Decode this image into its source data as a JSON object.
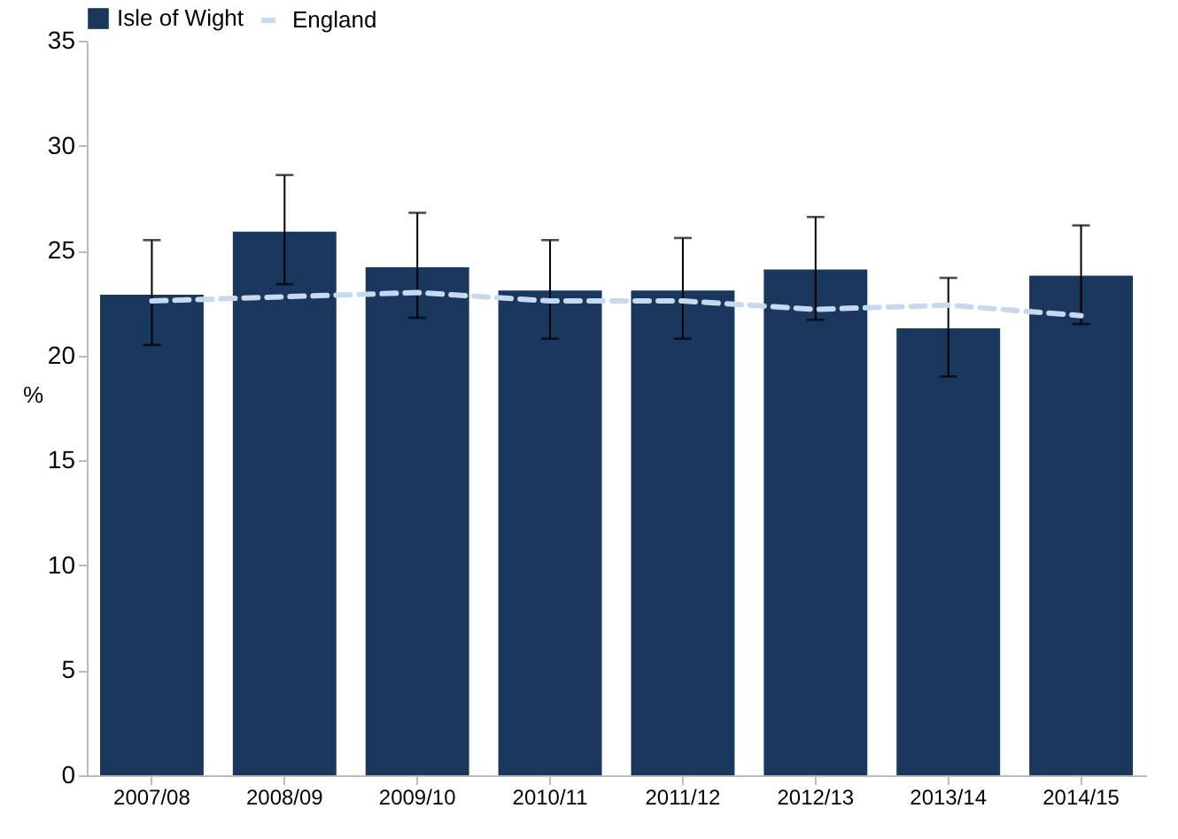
{
  "chart_data": {
    "type": "bar",
    "ylabel": "%",
    "categories": [
      "2007/08",
      "2008/09",
      "2009/10",
      "2010/11",
      "2011/12",
      "2012/13",
      "2013/14",
      "2014/15"
    ],
    "series": [
      {
        "name": "Isle of Wight",
        "color": "#1a375e",
        "values": [
          22.9,
          25.9,
          24.2,
          23.1,
          23.1,
          24.1,
          21.3,
          23.8
        ],
        "errors": [
          [
            20.5,
            25.5
          ],
          [
            23.4,
            28.6
          ],
          [
            21.8,
            26.8
          ],
          [
            20.8,
            25.5
          ],
          [
            20.8,
            25.6
          ],
          [
            21.7,
            26.6
          ],
          [
            19.0,
            23.7
          ],
          [
            21.5,
            26.2
          ]
        ]
      },
      {
        "name": "England",
        "type": "line",
        "color": "#c6d9f1",
        "line_style": "dashed",
        "values": [
          22.6,
          22.8,
          23.0,
          22.6,
          22.6,
          22.2,
          22.4,
          21.9
        ]
      }
    ],
    "ylim": [
      0,
      35
    ],
    "yticks": [
      0,
      5,
      10,
      15,
      20,
      25,
      30,
      35
    ],
    "grid": false,
    "legend": "top",
    "marker": "none"
  }
}
